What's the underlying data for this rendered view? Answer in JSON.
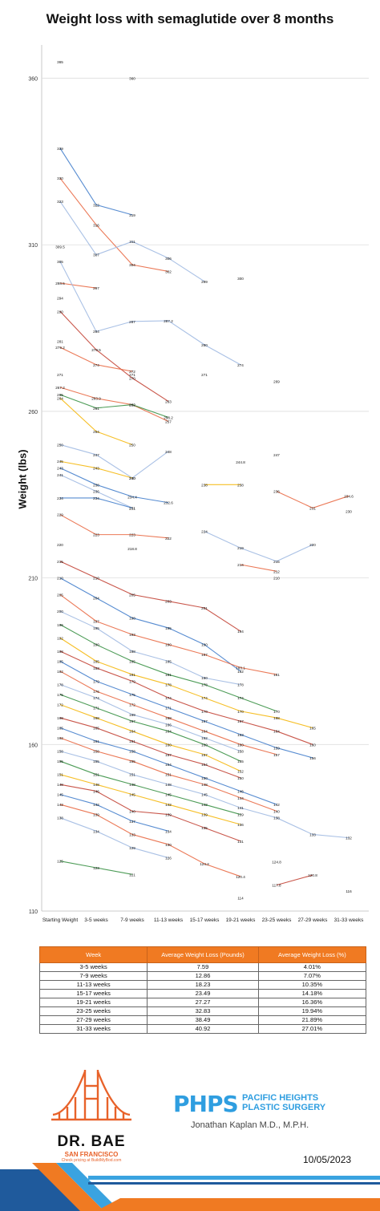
{
  "title": "Weight loss with semaglutide over 8 months",
  "chart_data": {
    "type": "line",
    "title": "Weight loss with semaglutide over 8 months",
    "xlabel": "",
    "ylabel": "Weight (lbs)",
    "categories": [
      "Starting Weight",
      "3-5 weeks",
      "7-9 weeks",
      "11-13 weeks",
      "15-17 weeks",
      "19-21 weeks",
      "23-25 weeks",
      "27-29 weeks",
      "31-33 weeks"
    ],
    "ylim": [
      110,
      370
    ],
    "yticks": [
      110,
      160,
      210,
      260,
      310,
      360
    ],
    "grid": true,
    "series": [
      {
        "color": "#2e8b3a",
        "values": [
          365,
          null,
          360,
          null,
          null,
          null,
          null,
          null,
          null
        ]
      },
      {
        "color": "#3a78c9",
        "values": [
          339,
          322,
          319,
          null,
          null,
          null,
          null,
          null,
          null
        ]
      },
      {
        "color": "#e8623a",
        "values": [
          330,
          316,
          304,
          302,
          null,
          300,
          null,
          null,
          null
        ]
      },
      {
        "color": "#9bb6e0",
        "values": [
          323,
          307,
          311,
          306,
          299,
          null,
          null,
          null,
          null
        ]
      },
      {
        "color": "#3a78c9",
        "values": [
          309.5,
          null,
          null,
          null,
          null,
          null,
          null,
          null,
          null
        ]
      },
      {
        "color": "#e8623a",
        "values": [
          298.5,
          297,
          null,
          null,
          null,
          null,
          null,
          null,
          null
        ]
      },
      {
        "color": "#9bb6e0",
        "values": [
          305,
          284,
          287,
          287.2,
          280,
          274,
          null,
          null,
          null
        ]
      },
      {
        "color": "#c0392b",
        "values": [
          294,
          null,
          null,
          null,
          null,
          null,
          null,
          null,
          null
        ]
      },
      {
        "color": "#c0392b",
        "values": [
          290,
          278.5,
          270,
          263,
          null,
          null,
          null,
          null,
          null
        ]
      },
      {
        "color": "#3a78c9",
        "values": [
          281,
          null,
          null,
          null,
          null,
          null,
          null,
          null,
          null
        ]
      },
      {
        "color": "#e8623a",
        "values": [
          279.2,
          274,
          272,
          null,
          271,
          null,
          269,
          null,
          null
        ]
      },
      {
        "color": "#f4b400",
        "values": [
          271,
          null,
          271,
          null,
          null,
          null,
          null,
          null,
          null
        ]
      },
      {
        "color": "#e8623a",
        "values": [
          267.2,
          263.9,
          262,
          257,
          null,
          null,
          236,
          231,
          234.6
        ]
      },
      {
        "color": "#f4b400",
        "values": [
          264,
          254,
          250,
          null,
          null,
          null,
          247,
          null,
          null
        ]
      },
      {
        "color": "#2e8b3a",
        "values": [
          265,
          261,
          262,
          258.2,
          null,
          null,
          null,
          null,
          null
        ]
      },
      {
        "color": "#9bb6e0",
        "values": [
          250,
          247,
          240,
          248,
          null,
          244.8,
          null,
          null,
          230
        ]
      },
      {
        "color": "#f4b400",
        "values": [
          245,
          243,
          240,
          null,
          238,
          238,
          null,
          null,
          null
        ]
      },
      {
        "color": "#3a78c9",
        "values": [
          243,
          238,
          234.4,
          232.6,
          null,
          null,
          null,
          null,
          null
        ]
      },
      {
        "color": "#9bb6e0",
        "values": [
          241,
          236,
          231,
          null,
          224,
          219,
          215,
          220,
          null
        ]
      },
      {
        "color": "#3a78c9",
        "values": [
          234,
          234,
          231,
          null,
          null,
          null,
          210,
          null,
          null
        ]
      },
      {
        "color": "#e8623a",
        "values": [
          229,
          223,
          223,
          222,
          null,
          214,
          212,
          null,
          null
        ]
      },
      {
        "color": "#2e8b3a",
        "values": [
          220,
          null,
          218.8,
          null,
          null,
          null,
          null,
          null,
          null
        ]
      },
      {
        "color": "#c0392b",
        "values": [
          215,
          210,
          205,
          203,
          201,
          194,
          null,
          null,
          null
        ]
      },
      {
        "color": "#3a78c9",
        "values": [
          210,
          204,
          198,
          195,
          190,
          182,
          null,
          null,
          null
        ]
      },
      {
        "color": "#e8623a",
        "values": [
          205,
          197,
          193,
          190,
          187,
          183.1,
          181,
          null,
          null
        ]
      },
      {
        "color": "#9bb6e0",
        "values": [
          200,
          195,
          188,
          185,
          180,
          178,
          null,
          null,
          null
        ]
      },
      {
        "color": "#2e8b3a",
        "values": [
          196,
          190,
          185,
          181,
          178,
          174,
          170,
          null,
          null
        ]
      },
      {
        "color": "#f4b400",
        "values": [
          192,
          185,
          181,
          178,
          174,
          170,
          168,
          165,
          null
        ]
      },
      {
        "color": "#c0392b",
        "values": [
          188,
          183,
          179,
          174,
          170,
          167,
          164,
          160,
          null
        ]
      },
      {
        "color": "#3a78c9",
        "values": [
          185,
          179,
          175,
          171,
          167,
          163,
          159,
          156,
          null
        ]
      },
      {
        "color": "#e8623a",
        "values": [
          182,
          176,
          172,
          168,
          164,
          160,
          157,
          null,
          null
        ]
      },
      {
        "color": "#9bb6e0",
        "values": [
          178,
          174,
          169,
          166,
          162,
          158,
          null,
          null,
          null
        ]
      },
      {
        "color": "#2e8b3a",
        "values": [
          175,
          171,
          167,
          164,
          160,
          155,
          null,
          null,
          null
        ]
      },
      {
        "color": "#f4b400",
        "values": [
          172,
          168,
          164,
          160,
          157,
          152,
          null,
          null,
          null
        ]
      },
      {
        "color": "#c0392b",
        "values": [
          168,
          165,
          161,
          157,
          154,
          150,
          null,
          null,
          null
        ]
      },
      {
        "color": "#3a78c9",
        "values": [
          165,
          161,
          158,
          154,
          150,
          146,
          142,
          null,
          null
        ]
      },
      {
        "color": "#e8623a",
        "values": [
          162,
          158,
          155,
          151,
          148,
          144,
          140,
          null,
          null
        ]
      },
      {
        "color": "#9bb6e0",
        "values": [
          158,
          155,
          151,
          148,
          145,
          141,
          138,
          133,
          132
        ]
      },
      {
        "color": "#2e8b3a",
        "values": [
          155,
          151,
          148,
          145,
          142,
          139,
          null,
          null,
          null
        ]
      },
      {
        "color": "#f4b400",
        "values": [
          151,
          148,
          145,
          142,
          139,
          136,
          null,
          null,
          null
        ]
      },
      {
        "color": "#c0392b",
        "values": [
          148,
          146,
          140,
          139,
          135,
          131,
          null,
          null,
          null
        ]
      },
      {
        "color": "#3a78c9",
        "values": [
          145,
          142,
          137,
          134,
          null,
          null,
          null,
          null,
          null
        ]
      },
      {
        "color": "#e8623a",
        "values": [
          142,
          139,
          133,
          130,
          124.2,
          120.4,
          null,
          null,
          null
        ]
      },
      {
        "color": "#9bb6e0",
        "values": [
          138,
          134,
          129,
          126,
          null,
          null,
          null,
          null,
          null
        ]
      },
      {
        "color": "#2e8b3a",
        "values": [
          125,
          123,
          121,
          null,
          null,
          114,
          null,
          null,
          null
        ]
      },
      {
        "color": "#3a78c9",
        "values": [
          null,
          null,
          null,
          null,
          null,
          null,
          null,
          null,
          116
        ]
      },
      {
        "color": "#c0392b",
        "values": [
          null,
          null,
          null,
          null,
          null,
          null,
          117.8,
          120.8,
          null
        ]
      },
      {
        "color": "#e8623a",
        "values": [
          null,
          null,
          null,
          null,
          null,
          null,
          124.8,
          null,
          null
        ]
      }
    ]
  },
  "table": {
    "headers": [
      "Week",
      "Average Weight Loss (Pounds)",
      "Average Weight Loss (%)"
    ],
    "rows": [
      [
        "3-5 weeks",
        "7.59",
        "4.01%"
      ],
      [
        "7-9 weeks",
        "12.86",
        "7.07%"
      ],
      [
        "11-13 weeks",
        "18.23",
        "10.35%"
      ],
      [
        "15-17 weeks",
        "23.49",
        "14.18%"
      ],
      [
        "19-21 weeks",
        "27.27",
        "16.36%"
      ],
      [
        "23-25 weeks",
        "32.83",
        "19.94%"
      ],
      [
        "27-29 weeks",
        "38.49",
        "21.89%"
      ],
      [
        "31-33 weeks",
        "40.92",
        "27.01%"
      ]
    ]
  },
  "logo_left": {
    "name": "DR. BAE",
    "sub": "SAN FRANCISCO",
    "tagline": "Check pricing at BuildMyBod.com",
    "color": "#e8622a"
  },
  "logo_right": {
    "mark": "PHPS",
    "name_line1": "PACIFIC HEIGHTS",
    "name_line2": "PLASTIC SURGERY",
    "author": "Jonathan Kaplan M.D., M.P.H.",
    "color": "#2f9ee0"
  },
  "date": "10/05/2023"
}
